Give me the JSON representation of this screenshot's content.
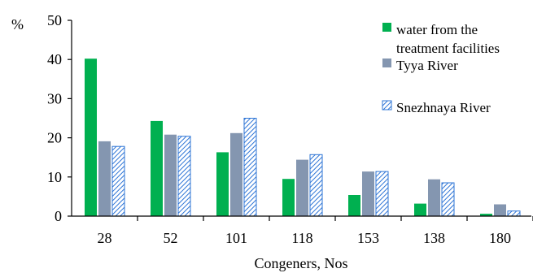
{
  "chart_data": {
    "type": "bar",
    "title": "",
    "xlabel": "Congeners, Nos",
    "ylabel": "%",
    "ylim": [
      0,
      50
    ],
    "yticks": [
      0,
      10,
      20,
      30,
      40,
      50
    ],
    "grid": false,
    "legend_position": "top-right",
    "categories": [
      "28",
      "52",
      "101",
      "118",
      "153",
      "138",
      "180"
    ],
    "series": [
      {
        "name": "water from the treatment facilities",
        "name_lines": [
          "water from the",
          "treatment facilities"
        ],
        "color": "#00b050",
        "pattern": "solid",
        "values": [
          40.2,
          24.3,
          16.3,
          9.5,
          5.4,
          3.2,
          0.6
        ]
      },
      {
        "name": "Tyya River",
        "name_lines": [
          "Tyya River"
        ],
        "color": "#8496b0",
        "pattern": "solid",
        "values": [
          19.1,
          20.8,
          21.2,
          14.4,
          11.4,
          9.4,
          3.0
        ]
      },
      {
        "name": "Snezhnaya River",
        "name_lines": [
          "Snezhnaya River"
        ],
        "color": "#2e75d6",
        "pattern": "hatched",
        "values": [
          17.8,
          20.4,
          25.0,
          15.7,
          11.4,
          8.5,
          1.3
        ]
      }
    ]
  }
}
